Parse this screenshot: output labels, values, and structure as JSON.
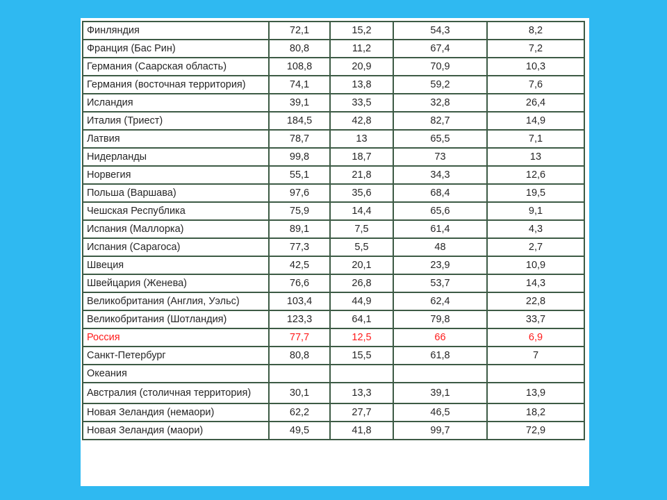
{
  "table": {
    "rows": [
      [
        "Финляндия",
        "72,1",
        "15,2",
        "54,3",
        "8,2"
      ],
      [
        "Франция (Бас Рин)",
        "80,8",
        "11,2",
        "67,4",
        "7,2"
      ],
      [
        "Германия (Саарская область)",
        "108,8",
        "20,9",
        "70,9",
        "10,3"
      ],
      [
        "Германия (восточная территория)",
        "74,1",
        "13,8",
        "59,2",
        "7,6"
      ],
      [
        "Исландия",
        "39,1",
        "33,5",
        "32,8",
        "26,4"
      ],
      [
        "Италия (Триест)",
        "184,5",
        "42,8",
        "82,7",
        "14,9"
      ],
      [
        "Латвия",
        "78,7",
        "13",
        "65,5",
        "7,1"
      ],
      [
        "Нидерланды",
        "99,8",
        "18,7",
        "73",
        "13"
      ],
      [
        "Норвегия",
        "55,1",
        "21,8",
        "34,3",
        "12,6"
      ],
      [
        "Польша (Варшава)",
        "97,6",
        "35,6",
        "68,4",
        "19,5"
      ],
      [
        "Чешская Республика",
        "75,9",
        "14,4",
        "65,6",
        "9,1"
      ],
      [
        "Испания (Маллорка)",
        "89,1",
        "7,5",
        "61,4",
        "4,3"
      ],
      [
        "Испания (Сарагоса)",
        "77,3",
        "5,5",
        "48",
        "2,7"
      ],
      [
        "Швеция",
        "42,5",
        "20,1",
        "23,9",
        "10,9"
      ],
      [
        "Швейцария (Женева)",
        "76,6",
        "26,8",
        "53,7",
        "14,3"
      ],
      [
        "Великобритания (Англия, Уэльс)",
        "103,4",
        "44,9",
        "62,4",
        "22,8"
      ],
      [
        "Великобритания (Шотландия)",
        "123,3",
        "64,1",
        "79,8",
        "33,7"
      ],
      [
        "Россия",
        "77,7",
        "12,5",
        "66",
        "6,9"
      ],
      [
        "Санкт-Петербург",
        "80,8",
        "15,5",
        "61,8",
        "7"
      ],
      [
        "Океания"
      ],
      [
        "Австралия (столичная территория)",
        "30,1",
        "13,3",
        "39,1",
        "13,9"
      ],
      [
        "Новая Зеландия (немаори)",
        "62,2",
        "27,7",
        "46,5",
        "18,2"
      ],
      [
        "Новая Зеландия (маори)",
        "49,5",
        "41,8",
        "99,7",
        "72,9"
      ]
    ],
    "highlight": {
      "row": 17,
      "color": "#ff1a1a"
    }
  }
}
